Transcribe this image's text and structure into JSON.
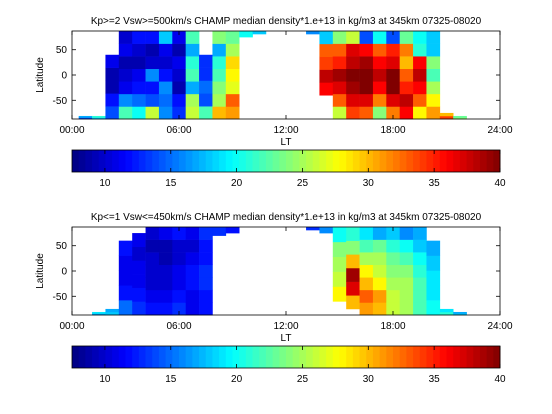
{
  "chart_data": [
    {
      "type": "heatmap",
      "title": "Kp>=2 Vsw>=500km/s CHAMP median density*1.e+13 in kg/m3 at 345km 07325-08020",
      "xlabel": "LT",
      "ylabel": "Latitude",
      "xlim": [
        0,
        24
      ],
      "ylim": [
        -87,
        87
      ],
      "xticks": [
        "00:00",
        "06:00",
        "12:00",
        "18:00",
        "24:00"
      ],
      "yticks": [
        "-50",
        "0",
        "50"
      ],
      "columns": [
        {
          "lt": 0.75,
          "lat": [
            -87,
            -81
          ],
          "values": [
            14,
            17
          ]
        },
        {
          "lt": 1.5,
          "lat": [
            -87,
            -81
          ],
          "values": [
            18,
            21
          ]
        },
        {
          "lt": 2.25,
          "lat": [
            -87,
            40
          ],
          "values": [
            14,
            12,
            9,
            9,
            11
          ]
        },
        {
          "lt": 3.0,
          "lat": [
            -87,
            87
          ],
          "values": [
            22,
            16,
            11,
            10,
            9,
            11,
            10
          ]
        },
        {
          "lt": 3.75,
          "lat": [
            -87,
            87
          ],
          "values": [
            20,
            15,
            12,
            11,
            9,
            10,
            12
          ]
        },
        {
          "lt": 4.5,
          "lat": [
            -87,
            87
          ],
          "values": [
            26,
            14,
            12,
            16,
            10,
            9,
            12
          ]
        },
        {
          "lt": 5.25,
          "lat": [
            -87,
            87
          ],
          "values": [
            16,
            15,
            16,
            12,
            10,
            11,
            18
          ]
        },
        {
          "lt": 6.0,
          "lat": [
            -87,
            87
          ],
          "values": [
            13,
            12,
            9,
            10,
            11,
            9,
            11
          ]
        },
        {
          "lt": 6.75,
          "lat": [
            -87,
            87
          ],
          "values": [
            26,
            25,
            17,
            22,
            21,
            17,
            22
          ]
        },
        {
          "lt": 7.5,
          "lat": [
            -87,
            40
          ],
          "values": [
            22,
            14,
            15,
            13,
            13
          ]
        },
        {
          "lt": 8.25,
          "lat": [
            -87,
            87
          ],
          "values": [
            30,
            25,
            24,
            22,
            21,
            17,
            24
          ]
        },
        {
          "lt": 9.0,
          "lat": [
            -87,
            87
          ],
          "values": [
            31,
            33,
            27,
            28,
            29,
            25,
            23
          ]
        },
        {
          "lt": 9.75,
          "lat": [
            75,
            87
          ],
          "values": [
            20
          ]
        },
        {
          "lt": 10.5,
          "lat": [
            81,
            87
          ],
          "values": [
            18
          ]
        },
        {
          "lt": 13.5,
          "lat": [
            81,
            87
          ],
          "values": [
            16
          ]
        },
        {
          "lt": 14.25,
          "lat": [
            -40,
            87
          ],
          "values": [
            36,
            38,
            34,
            33,
            18
          ]
        },
        {
          "lt": 15.0,
          "lat": [
            -87,
            87
          ],
          "values": [
            26,
            33,
            37,
            39,
            35,
            33,
            24
          ]
        },
        {
          "lt": 15.75,
          "lat": [
            -87,
            87
          ],
          "values": [
            34,
            37,
            39,
            40,
            38,
            37,
            26
          ]
        },
        {
          "lt": 16.5,
          "lat": [
            -87,
            87
          ],
          "values": [
            33,
            37,
            40,
            40,
            39,
            36,
            14
          ]
        },
        {
          "lt": 17.25,
          "lat": [
            -87,
            87
          ],
          "values": [
            24,
            32,
            36,
            38,
            36,
            33,
            20
          ]
        },
        {
          "lt": 18.0,
          "lat": [
            -87,
            87
          ],
          "values": [
            32,
            37,
            40,
            40,
            37,
            35,
            14
          ]
        },
        {
          "lt": 18.75,
          "lat": [
            -87,
            87
          ],
          "values": [
            36,
            38,
            35,
            33,
            30,
            32,
            23
          ]
        },
        {
          "lt": 19.5,
          "lat": [
            -87,
            87
          ],
          "values": [
            28,
            33,
            36,
            38,
            36,
            21,
            20
          ]
        },
        {
          "lt": 20.25,
          "lat": [
            -87,
            87
          ],
          "values": [
            31,
            28,
            25,
            22,
            24,
            18,
            18
          ]
        },
        {
          "lt": 21.0,
          "lat": [
            -87,
            -75
          ],
          "values": [
            34,
            30
          ]
        },
        {
          "lt": 21.75,
          "lat": [
            -87,
            -81
          ],
          "values": [
            24,
            23
          ]
        }
      ]
    },
    {
      "type": "heatmap",
      "title": "Kp<=1 Vsw<=450km/s CHAMP median density*1.e+13 in kg/m3 at 345km 07325-08020",
      "xlabel": "LT",
      "ylabel": "Latitude",
      "xlim": [
        0,
        24
      ],
      "ylim": [
        -87,
        87
      ],
      "xticks": [
        "00:00",
        "06:00",
        "12:00",
        "18:00",
        "24:00"
      ],
      "yticks": [
        "-50",
        "0",
        "50"
      ],
      "columns": [
        {
          "lt": 1.5,
          "lat": [
            -87,
            -81
          ],
          "values": [
            17,
            19
          ]
        },
        {
          "lt": 2.25,
          "lat": [
            -87,
            -75
          ],
          "values": [
            18,
            17
          ]
        },
        {
          "lt": 3.0,
          "lat": [
            -87,
            60
          ],
          "values": [
            15,
            12,
            11,
            11,
            12
          ]
        },
        {
          "lt": 3.75,
          "lat": [
            -87,
            75
          ],
          "values": [
            13,
            12,
            11,
            11,
            10,
            11
          ]
        },
        {
          "lt": 4.5,
          "lat": [
            -87,
            87
          ],
          "values": [
            12,
            11,
            10,
            10,
            10,
            9,
            10
          ]
        },
        {
          "lt": 5.25,
          "lat": [
            -87,
            87
          ],
          "values": [
            12,
            11,
            10,
            10,
            9,
            9,
            11
          ]
        },
        {
          "lt": 6.0,
          "lat": [
            -87,
            87
          ],
          "values": [
            13,
            12,
            11,
            11,
            10,
            10,
            12
          ]
        },
        {
          "lt": 6.75,
          "lat": [
            -87,
            87
          ],
          "values": [
            11,
            11,
            12,
            12,
            11,
            10,
            11
          ]
        },
        {
          "lt": 7.5,
          "lat": [
            -87,
            87
          ],
          "values": [
            12,
            12,
            13,
            13,
            12,
            12,
            13
          ]
        },
        {
          "lt": 8.25,
          "lat": [
            70,
            87
          ],
          "values": [
            13
          ]
        },
        {
          "lt": 9.0,
          "lat": [
            75,
            87
          ],
          "values": [
            12
          ]
        },
        {
          "lt": 13.5,
          "lat": [
            81,
            87
          ],
          "values": [
            13
          ]
        },
        {
          "lt": 14.25,
          "lat": [
            75,
            87
          ],
          "values": [
            16
          ]
        },
        {
          "lt": 15.0,
          "lat": [
            -60,
            87
          ],
          "values": [
            28,
            26,
            25,
            24,
            20
          ]
        },
        {
          "lt": 15.75,
          "lat": [
            -75,
            87
          ],
          "values": [
            30,
            37,
            39,
            30,
            24,
            21
          ]
        },
        {
          "lt": 16.5,
          "lat": [
            -87,
            87
          ],
          "values": [
            31,
            33,
            30,
            28,
            25,
            22,
            19
          ]
        },
        {
          "lt": 17.25,
          "lat": [
            -87,
            87
          ],
          "values": [
            30,
            31,
            28,
            26,
            25,
            23,
            17
          ]
        },
        {
          "lt": 18.0,
          "lat": [
            -87,
            87
          ],
          "values": [
            26,
            26,
            25,
            24,
            23,
            21,
            18
          ]
        },
        {
          "lt": 18.75,
          "lat": [
            -87,
            87
          ],
          "values": [
            25,
            25,
            25,
            24,
            22,
            20,
            16
          ]
        },
        {
          "lt": 19.5,
          "lat": [
            -87,
            87
          ],
          "values": [
            22,
            22,
            22,
            21,
            20,
            18,
            17
          ]
        },
        {
          "lt": 20.25,
          "lat": [
            -87,
            60
          ],
          "values": [
            20,
            19,
            19,
            18,
            17
          ]
        },
        {
          "lt": 21.0,
          "lat": [
            -87,
            -75
          ],
          "values": [
            21,
            19
          ]
        },
        {
          "lt": 21.75,
          "lat": [
            -87,
            -81
          ],
          "values": [
            18,
            17
          ]
        }
      ]
    }
  ],
  "colorbars": [
    {
      "range": [
        7.5,
        40
      ],
      "ticks": [
        "10",
        "15",
        "20",
        "25",
        "30",
        "35",
        "40"
      ]
    },
    {
      "range": [
        7.5,
        40
      ],
      "ticks": [
        "10",
        "15",
        "20",
        "25",
        "30",
        "35",
        "40"
      ]
    }
  ]
}
